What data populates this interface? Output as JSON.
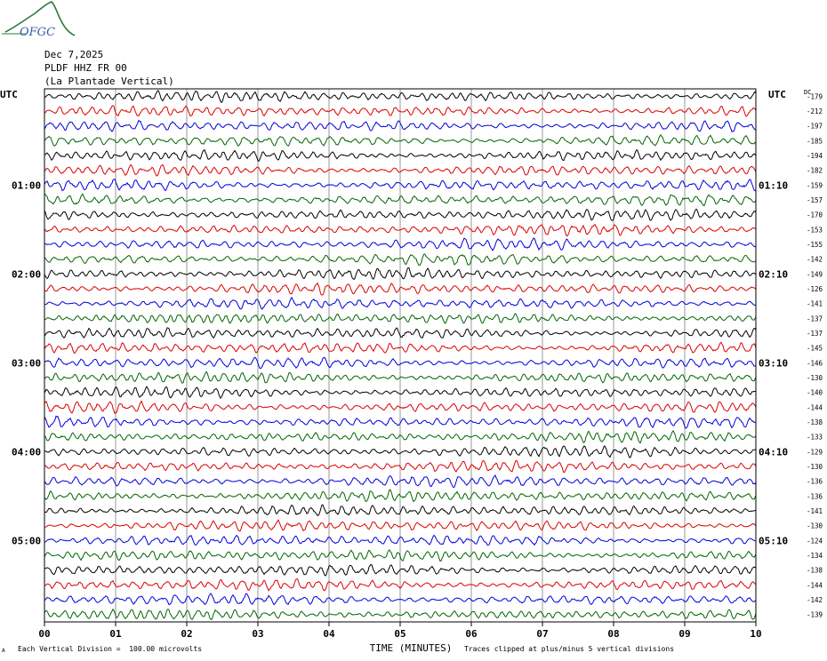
{
  "header": {
    "date": "Dec 7,2025",
    "station": "PLDF HHZ FR 00",
    "location": "(La Plantade Vertical)",
    "logo_text": "OFGC"
  },
  "labels": {
    "utc_left": "UTC",
    "utc_right": "UTC",
    "dc_header": "DC"
  },
  "footer": {
    "scale_note": "Each Vertical Division =  100.00 microvolts",
    "clip_note": "Traces clipped at plus/minus 5 vertical divisions",
    "corner_mark": "A"
  },
  "colors": {
    "trace_cycle": [
      "#000000",
      "#dd0000",
      "#0000dd",
      "#006600"
    ],
    "grid": "#808080",
    "logo": "#2a7a3a"
  },
  "chart_data": {
    "type": "line",
    "title": "",
    "xlabel": "TIME (MINUTES)",
    "ylabel": "",
    "xlim": [
      0,
      10
    ],
    "x_ticks": [
      "00",
      "01",
      "02",
      "03",
      "04",
      "05",
      "06",
      "07",
      "08",
      "09",
      "10"
    ],
    "row_count": 36,
    "rows_per_hour": 6,
    "left_time_labels": [
      {
        "row": 6,
        "text": "01:00"
      },
      {
        "row": 12,
        "text": "02:00"
      },
      {
        "row": 18,
        "text": "03:00"
      },
      {
        "row": 24,
        "text": "04:00"
      },
      {
        "row": 30,
        "text": "05:00"
      }
    ],
    "right_time_labels": [
      {
        "row": 6,
        "text": "01:10"
      },
      {
        "row": 12,
        "text": "02:10"
      },
      {
        "row": 18,
        "text": "03:10"
      },
      {
        "row": 24,
        "text": "04:10"
      },
      {
        "row": 30,
        "text": "05:10"
      }
    ],
    "dc_offsets": [
      -179,
      -212,
      -197,
      -185,
      -194,
      -182,
      -159,
      -157,
      -170,
      -153,
      -155,
      -142,
      -149,
      -126,
      -141,
      -137,
      -137,
      -145,
      -146,
      -130,
      -140,
      -144,
      -138,
      -133,
      -129,
      -130,
      -136,
      -136,
      -141,
      -130,
      -124,
      -134,
      -138,
      -144,
      -142,
      -139
    ]
  }
}
